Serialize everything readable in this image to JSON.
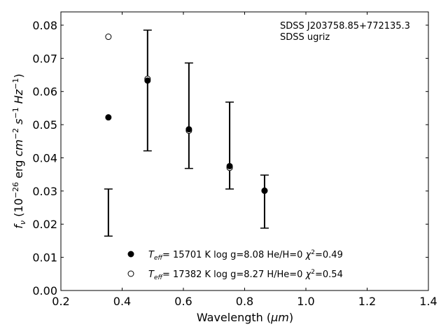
{
  "chart_data": {
    "type": "scatter",
    "title_lines": [
      "SDSS J203758.85+772135.3",
      "SDSS ugriz"
    ],
    "xlabel": "Wavelength (",
    "xlabel_unit": "μm",
    "xlabel_end": ")",
    "ylabel": "f_ν (10^-26 erg cm^-2 s^-1 Hz^-1)",
    "xlim": [
      0.2,
      1.4
    ],
    "ylim": [
      0.0,
      0.084
    ],
    "xticks": [
      0.2,
      0.4,
      0.6,
      0.8,
      1.0,
      1.2,
      1.4
    ],
    "xtick_labels": [
      "0.2",
      "0.4",
      "0.6",
      "0.8",
      "1.0",
      "1.2",
      "1.4"
    ],
    "yticks": [
      0.0,
      0.01,
      0.02,
      0.03,
      0.04,
      0.05,
      0.06,
      0.07,
      0.08
    ],
    "ytick_labels": [
      "0.00",
      "0.01",
      "0.02",
      "0.03",
      "0.04",
      "0.05",
      "0.06",
      "0.07",
      "0.08"
    ],
    "observed": {
      "x": [
        0.3551,
        0.483,
        0.618,
        0.751,
        0.865
      ],
      "y": [
        0.0235,
        0.0603,
        0.0527,
        0.0437,
        0.0268
      ],
      "yerr": [
        0.0071,
        0.0182,
        0.0159,
        0.0131,
        0.008
      ]
    },
    "series": [
      {
        "name": "model-1",
        "marker": "filled",
        "x": [
          0.3551,
          0.483,
          0.618,
          0.751,
          0.865
        ],
        "y": [
          0.0522,
          0.0633,
          0.0486,
          0.0375,
          0.0301
        ],
        "legend": {
          "T": "T",
          "sub": "eff",
          "rest": "= 15701 K  log g=8.08  He/H=0  ",
          "chi": "χ",
          "sup": "2",
          "val": "=0.49"
        }
      },
      {
        "name": "model-2",
        "marker": "open",
        "x": [
          0.3551,
          0.483,
          0.618,
          0.751,
          0.865
        ],
        "y": [
          0.0765,
          0.0638,
          0.0482,
          0.037,
          0.0301
        ],
        "legend": {
          "T": "T",
          "sub": "eff",
          "rest": "= 17382 K  log g=8.27  H/He=0  ",
          "chi": "χ",
          "sup": "2",
          "val": "=0.54"
        }
      }
    ],
    "legend_position": "bottom-center",
    "grid": false
  }
}
